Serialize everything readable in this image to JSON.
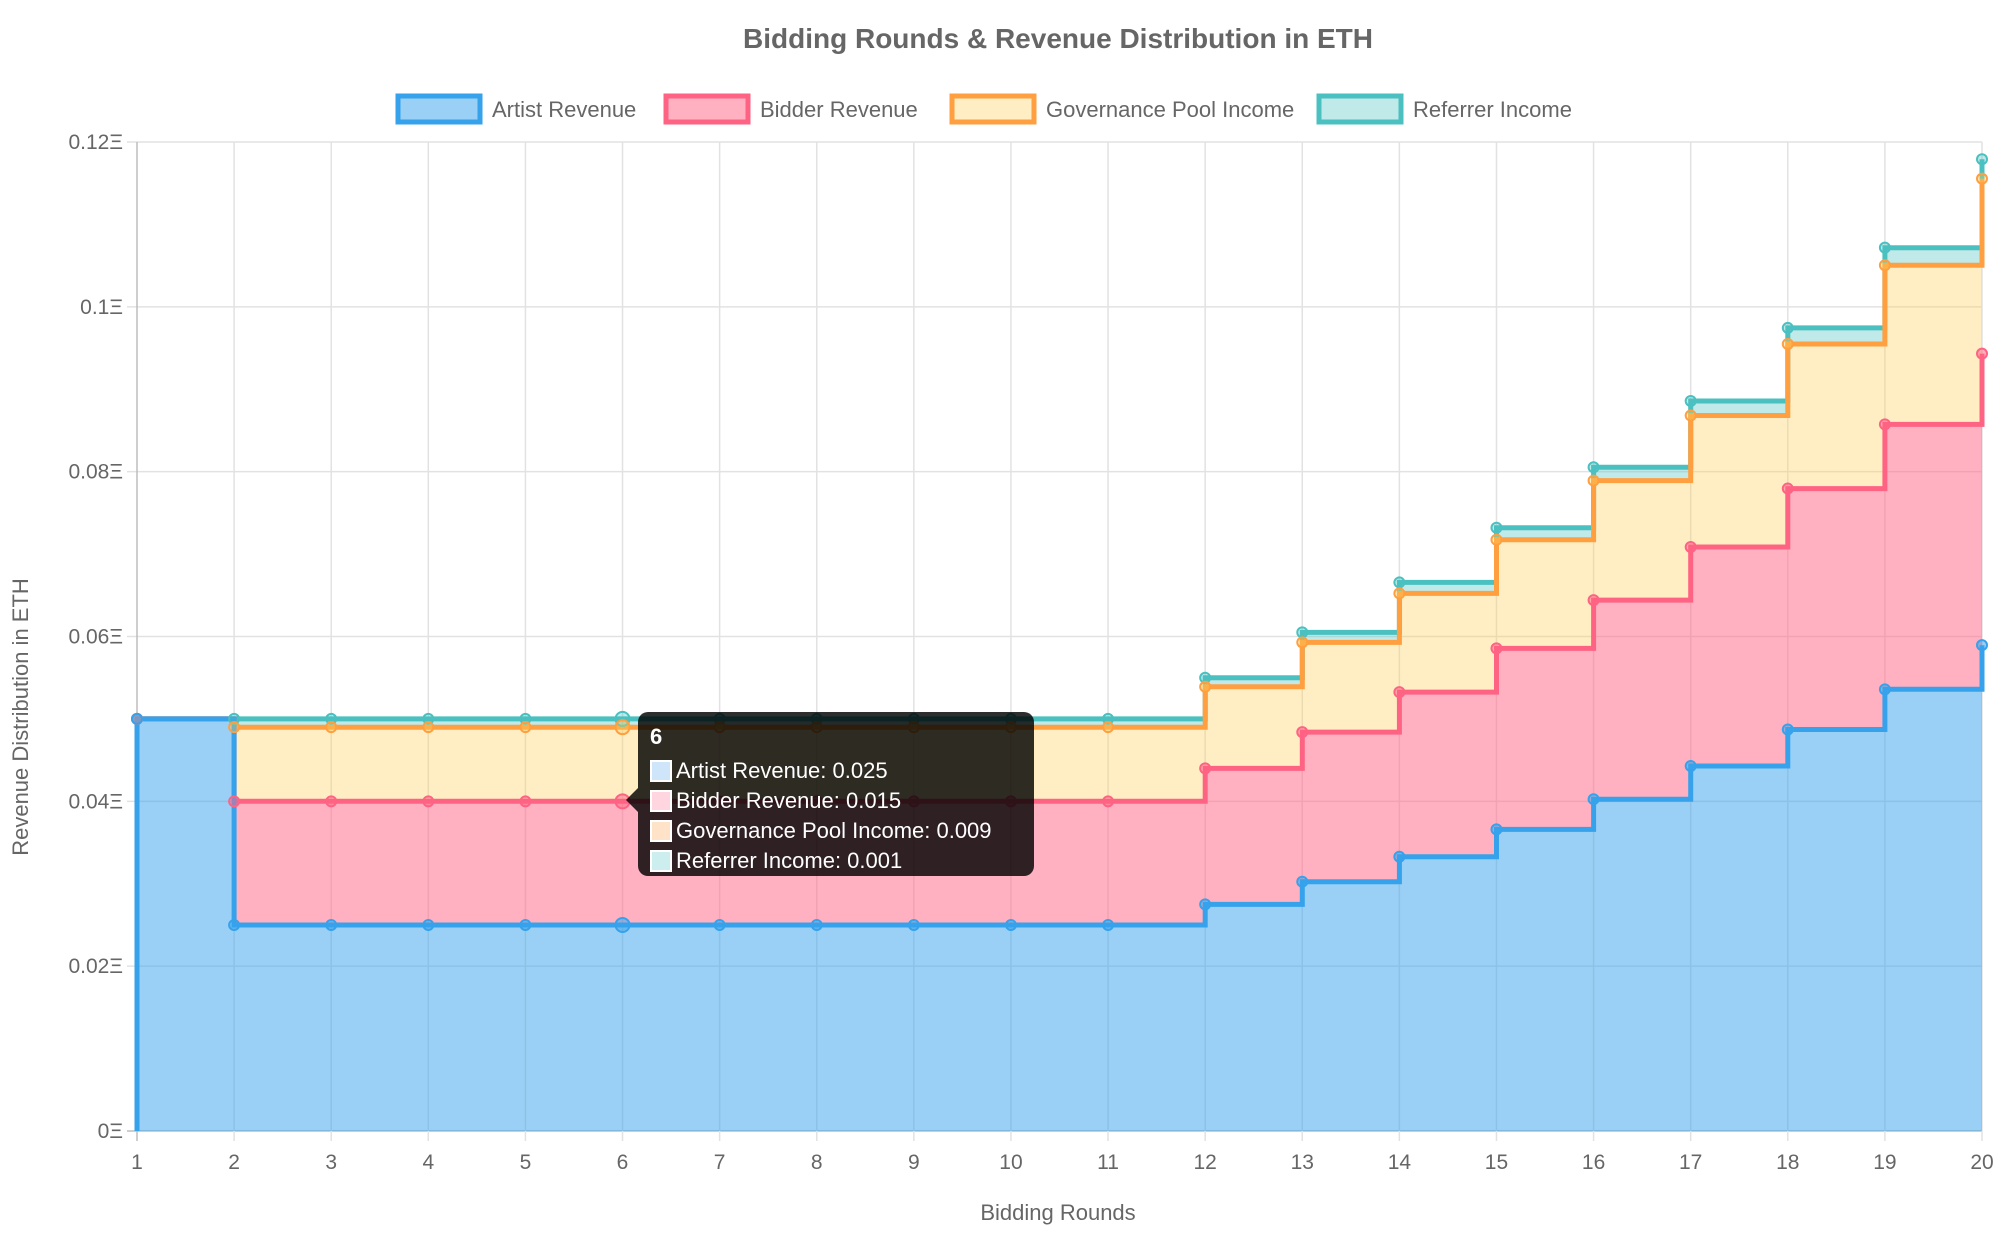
{
  "chart_data": {
    "type": "line",
    "stepped": true,
    "stacked": true,
    "title": "Bidding Rounds & Revenue Distribution in ETH",
    "xlabel": "Bidding Rounds",
    "ylabel": "Revenue Distribution in ETH",
    "categories": [
      "1",
      "2",
      "3",
      "4",
      "5",
      "6",
      "7",
      "8",
      "9",
      "10",
      "11",
      "12",
      "13",
      "14",
      "15",
      "16",
      "17",
      "18",
      "19",
      "20"
    ],
    "ylim": [
      0,
      0.12
    ],
    "yticks": [
      "0Ξ",
      "0.02Ξ",
      "0.04Ξ",
      "0.06Ξ",
      "0.08Ξ",
      "0.1Ξ",
      "0.12Ξ"
    ],
    "grid": true,
    "legend_position": "top",
    "series": [
      {
        "name": "Artist Revenue",
        "color": "#36a2eb",
        "fill": "rgba(54,162,235,0.5)",
        "values": [
          0.05,
          0.025,
          0.025,
          0.025,
          0.025,
          0.025,
          0.025,
          0.025,
          0.025,
          0.025,
          0.025,
          0.0275,
          0.03025,
          0.03328,
          0.0366,
          0.04026,
          0.04429,
          0.04872,
          0.05359,
          0.05895
        ]
      },
      {
        "name": "Bidder Revenue",
        "color": "#ff6384",
        "fill": "rgba(255,99,132,0.5)",
        "values": [
          0,
          0.015,
          0.015,
          0.015,
          0.015,
          0.015,
          0.015,
          0.015,
          0.015,
          0.015,
          0.015,
          0.0165,
          0.01815,
          0.01997,
          0.02196,
          0.02416,
          0.02657,
          0.02923,
          0.03215,
          0.03537
        ]
      },
      {
        "name": "Governance Pool Income",
        "color": "#ff9f40",
        "fill": "rgba(255,205,86,0.35)",
        "values": [
          0,
          0.009,
          0.009,
          0.009,
          0.009,
          0.009,
          0.009,
          0.009,
          0.009,
          0.009,
          0.009,
          0.0099,
          0.01089,
          0.01198,
          0.01318,
          0.0145,
          0.01595,
          0.01754,
          0.0193,
          0.02123
        ]
      },
      {
        "name": "Referrer Income",
        "color": "#4bc0c0",
        "fill": "rgba(75,192,192,0.35)",
        "values": [
          0,
          0.001,
          0.001,
          0.001,
          0.001,
          0.001,
          0.001,
          0.001,
          0.001,
          0.001,
          0.001,
          0.0011,
          0.00121,
          0.00133,
          0.00146,
          0.00161,
          0.00177,
          0.00195,
          0.00214,
          0.00236
        ]
      }
    ],
    "tooltip": {
      "title": "6",
      "lines": [
        "Artist Revenue: 0.025",
        "Bidder Revenue: 0.015",
        "Governance Pool Income: 0.009",
        "Referrer Income: 0.001"
      ],
      "colors": [
        "#36a2eb",
        "#ff6384",
        "#ff9f40",
        "#4bc0c0"
      ],
      "fills": [
        "#cfe6fa",
        "#ffd6df",
        "#ffe3c8",
        "#cdeeee"
      ]
    }
  }
}
